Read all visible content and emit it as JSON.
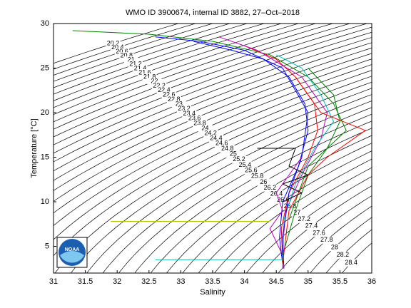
{
  "chart_data": {
    "type": "ts-diagram",
    "title": "WMO ID 3900674, internal ID 3882, 27–Oct–2018",
    "x_label": "Salinity",
    "y_label": "Temperature [°C]",
    "xlim": [
      31,
      36
    ],
    "ylim": [
      2,
      30
    ],
    "xticks": [
      31,
      31.5,
      32,
      32.5,
      33,
      33.5,
      34,
      34.5,
      35,
      35.5,
      36
    ],
    "yticks": [
      5,
      10,
      15,
      20,
      25,
      30
    ],
    "logo_text": "NOAA",
    "contour_levels": [
      20.2,
      20.4,
      20.6,
      20.8,
      21,
      21.2,
      21.4,
      21.6,
      21.8,
      22,
      22.2,
      22.4,
      22.6,
      22.8,
      23,
      23.2,
      23.4,
      23.6,
      23.8,
      24,
      24.2,
      24.4,
      24.6,
      24.8,
      25,
      25.2,
      25.4,
      25.6,
      25.8,
      26,
      26.2,
      26.4,
      26.6,
      26.8,
      27,
      27.2,
      27.4,
      27.6,
      27.8,
      28,
      28.2,
      28.4
    ],
    "contour_color": "#000000",
    "series": [
      {
        "color": "#008000",
        "salinity": [
          31.3,
          32.5,
          33.5,
          34.4,
          35.0,
          35.4,
          35.6,
          35.0,
          34.7
        ],
        "temperature": [
          29.2,
          28.8,
          28,
          26.5,
          24,
          21,
          18,
          14,
          8
        ]
      },
      {
        "color": "#0000ff",
        "salinity": [
          33.2,
          33.8,
          34.3,
          34.7,
          34.95,
          35.0,
          34.85,
          34.6,
          34.55,
          34.6
        ],
        "temperature": [
          28,
          27,
          26,
          24,
          21,
          18,
          14,
          10,
          6,
          3
        ]
      },
      {
        "color": "#ff0000",
        "salinity": [
          34.0,
          34.5,
          34.8,
          35.1,
          35.15,
          35.0,
          34.7,
          34.58,
          34.6
        ],
        "temperature": [
          27.5,
          26,
          24,
          21,
          18,
          15,
          11,
          7,
          3
        ]
      },
      {
        "color": "#bf00bf",
        "salinity": [
          33.6,
          34.2,
          34.9,
          35.3,
          35.2,
          34.9,
          34.65,
          34.6,
          34.6
        ],
        "temperature": [
          28.5,
          27,
          24,
          20,
          17,
          13,
          9,
          5,
          2.5
        ]
      },
      {
        "color": "#00bfbf",
        "salinity": [
          34.5,
          34.9,
          35.2,
          35.4,
          35.1,
          34.8,
          34.62,
          34.6
        ],
        "temperature": [
          26.5,
          25,
          22,
          19,
          16,
          12,
          8,
          3
        ]
      },
      {
        "color": "#0000ff",
        "salinity": [
          32.6,
          33.3,
          34.0,
          34.6,
          35.0,
          34.9,
          34.7,
          34.6,
          34.62
        ],
        "temperature": [
          28.5,
          28,
          27,
          25,
          20,
          15,
          11,
          6,
          2.5
        ]
      },
      {
        "color": "#008000",
        "salinity": [
          35.0,
          35.4,
          35.5,
          35.3,
          35.0,
          34.8,
          34.6
        ],
        "temperature": [
          25,
          22,
          19,
          16,
          13,
          9,
          4
        ]
      },
      {
        "color": "#ff0000",
        "salinity": [
          34.8,
          35.2,
          35.9,
          35.3,
          35.0,
          34.7,
          34.6
        ],
        "temperature": [
          24,
          20,
          18,
          15,
          13,
          9,
          3
        ]
      },
      {
        "color": "#000000",
        "salinity": [
          34.2,
          34.8,
          34.7,
          35.0,
          34.6,
          34.9,
          34.6
        ],
        "temperature": [
          16,
          16,
          14,
          13,
          12,
          11,
          10
        ]
      },
      {
        "color": "#bf00bf",
        "salinity": [
          34.9,
          34.7,
          34.5,
          34.6,
          34.4,
          34.6
        ],
        "temperature": [
          15,
          13,
          11,
          9,
          7,
          4
        ]
      },
      {
        "color": "#bfbf00",
        "salinity": [
          31.9,
          34.4
        ],
        "temperature": [
          7.8,
          7.8
        ]
      },
      {
        "color": "#00bfbf",
        "salinity": [
          32.6,
          34.6
        ],
        "temperature": [
          3.5,
          3.5
        ]
      }
    ]
  }
}
